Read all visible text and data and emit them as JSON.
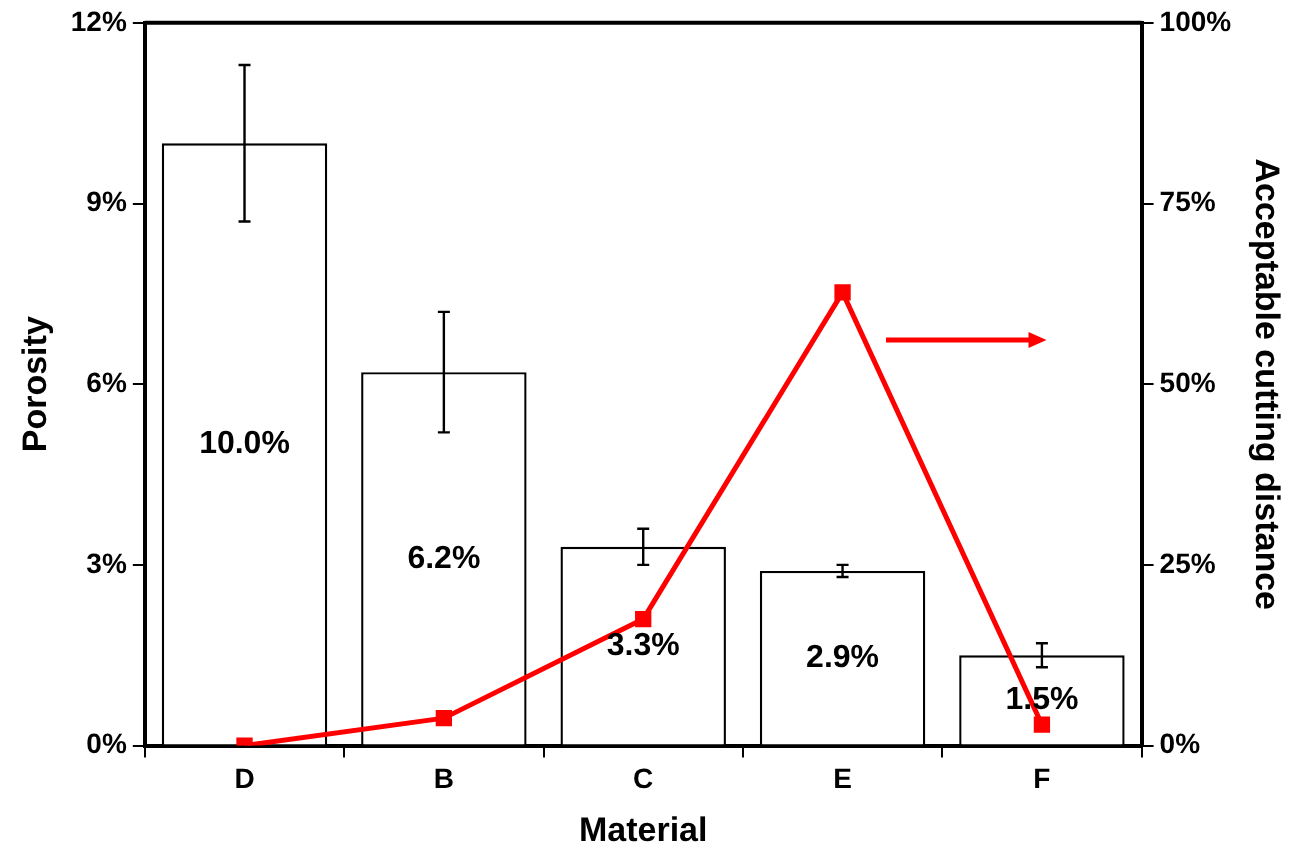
{
  "chart_data": {
    "type": "bar",
    "xlabel": "Material",
    "ylabel": "Porosity",
    "y2label": "Acceptable cutting distance",
    "categories": [
      "D",
      "B",
      "C",
      "E",
      "F"
    ],
    "series": [
      {
        "color": "#ffffff",
        "values": [
          10.0,
          6.2,
          3.3,
          2.9,
          1.5
        ],
        "errors": [
          1.3,
          1.0,
          0.3,
          0.1,
          0.2
        ],
        "value_labels": [
          "10.0%",
          "6.2%",
          "3.3%",
          "2.9%",
          "1.5%"
        ]
      },
      {
        "type": "line",
        "axis": "y2",
        "color": "#ff0000",
        "values": [
          0,
          3.8,
          17.5,
          62.7,
          2.9
        ]
      }
    ],
    "ylim": [
      0,
      12
    ],
    "yticks": [
      {
        "value": 0,
        "label": "0%"
      },
      {
        "value": 3,
        "label": "3%"
      },
      {
        "value": 6,
        "label": "6%"
      },
      {
        "value": 9,
        "label": "9%"
      },
      {
        "value": 12,
        "label": "12%"
      }
    ],
    "y2lim": [
      0,
      100
    ],
    "y2ticks": [
      {
        "value": 0,
        "label": "0%"
      },
      {
        "value": 25,
        "label": "25%"
      },
      {
        "value": 50,
        "label": "50%"
      },
      {
        "value": 75,
        "label": "75%"
      },
      {
        "value": 100,
        "label": "100%"
      }
    ],
    "marker": "square",
    "grid": false,
    "legend": false
  }
}
